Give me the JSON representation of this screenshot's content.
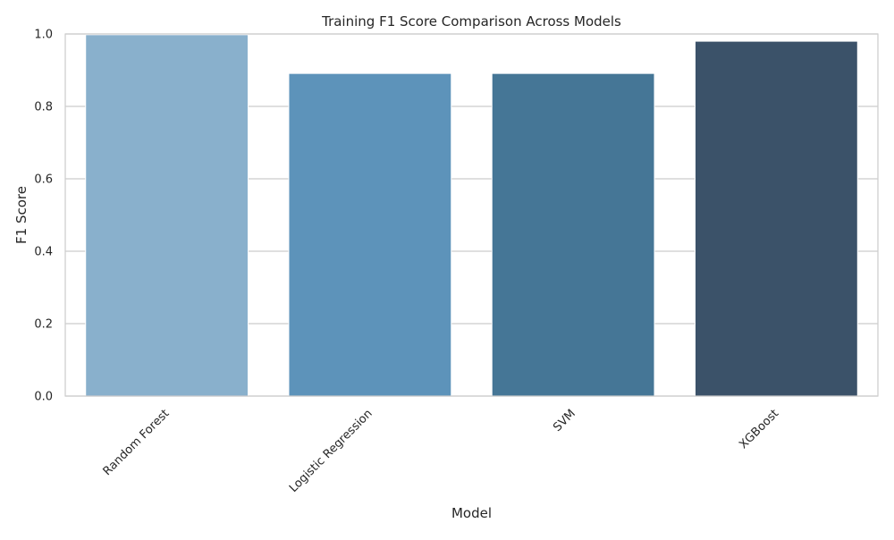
{
  "chart_data": {
    "type": "bar",
    "title": "Training F1 Score Comparison Across Models",
    "xlabel": "Model",
    "ylabel": "F1 Score",
    "categories": [
      "Random Forest",
      "Logistic Regression",
      "SVM",
      "XGBoost"
    ],
    "values": [
      0.998,
      0.891,
      0.891,
      0.98
    ],
    "bar_colors": [
      "#89b0cc",
      "#5d93ba",
      "#457696",
      "#3b5269"
    ],
    "ylim": [
      0,
      1.0
    ],
    "yticks": [
      "0.0",
      "0.2",
      "0.4",
      "0.6",
      "0.8",
      "1.0"
    ],
    "grid": "horizontal",
    "legend": "none",
    "colors": {
      "grid": "#cccccc",
      "spine": "#cccccc",
      "bar_edge": "#ffffff",
      "text": "#262626"
    }
  }
}
